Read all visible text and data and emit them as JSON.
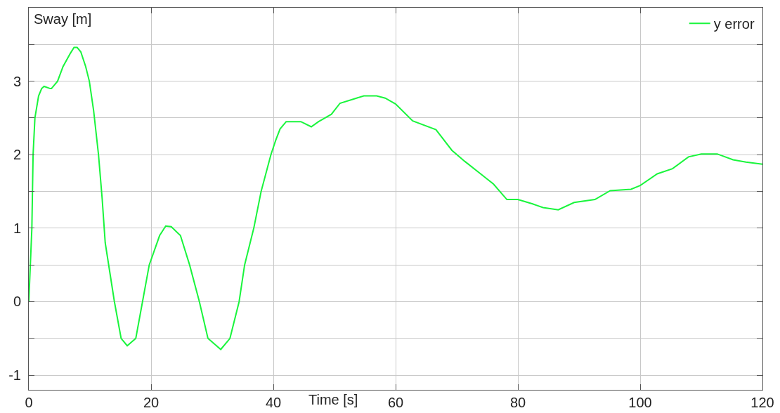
{
  "chart_data": {
    "type": "line",
    "xlabel": "Time [s]",
    "ylabel": "Sway [m]",
    "xlim": [
      0,
      120
    ],
    "xticks": [
      0,
      20,
      40,
      60,
      80,
      100,
      120
    ],
    "ylim": [
      -1.2,
      4
    ],
    "yticks": [
      -1,
      {
        "value": -0.5,
        "label": null
      },
      0,
      {
        "value": 0.5,
        "label": null
      },
      1,
      {
        "value": 1.5,
        "label": null
      },
      2,
      {
        "value": 2.5,
        "label": null
      },
      3,
      {
        "value": 3.5,
        "label": null
      }
    ],
    "grid": true,
    "legend": "top right",
    "series": [
      {
        "name": "y error",
        "color": "#19f53c",
        "x": [
          0,
          0.5,
          0.7,
          1,
          1.6,
          2.1,
          2.5,
          3.5,
          3.7,
          4.7,
          5.6,
          6.8,
          7.4,
          7.9,
          8.5,
          9.3,
          9.9,
          10.6,
          11.4,
          12,
          12.5,
          14.0,
          15.1,
          16.1,
          17.5,
          18.6,
          19.7,
          21.4,
          22.4,
          23.3,
          24.8,
          26.3,
          27.9,
          29.3,
          31.4,
          32.9,
          34.4,
          35.3,
          36.8,
          38,
          39.6,
          40.4,
          41.1,
          42.1,
          44.5,
          46.2,
          47.4,
          49.5,
          50.9,
          53.6,
          54.8,
          56.9,
          58.3,
          60,
          62.8,
          66.6,
          69.2,
          71.3,
          73.9,
          76.0,
          78.2,
          80,
          82.4,
          84.1,
          86.6,
          89.2,
          92.6,
          95.1,
          98.5,
          100,
          102.8,
          105.3,
          107.9,
          110.0,
          112.6,
          115.2,
          117.3,
          120
        ],
        "values": [
          0,
          1.0,
          2.0,
          2.5,
          2.8,
          2.9,
          2.93,
          2.9,
          2.9,
          3.0,
          3.2,
          3.38,
          3.46,
          3.46,
          3.4,
          3.2,
          3.0,
          2.6,
          2.0,
          1.4,
          0.8,
          0,
          -0.5,
          -0.6,
          -0.5,
          0,
          0.5,
          0.9,
          1.03,
          1.02,
          0.9,
          0.5,
          0,
          -0.5,
          -0.65,
          -0.5,
          0,
          0.5,
          1.0,
          1.5,
          2.0,
          2.2,
          2.35,
          2.45,
          2.45,
          2.38,
          2.45,
          2.55,
          2.7,
          2.77,
          2.8,
          2.8,
          2.77,
          2.69,
          2.46,
          2.34,
          2.06,
          1.91,
          1.74,
          1.6,
          1.39,
          1.39,
          1.33,
          1.28,
          1.25,
          1.35,
          1.39,
          1.51,
          1.53,
          1.58,
          1.74,
          1.81,
          1.97,
          2.01,
          2.01,
          1.93,
          1.9,
          1.87
        ]
      }
    ]
  }
}
